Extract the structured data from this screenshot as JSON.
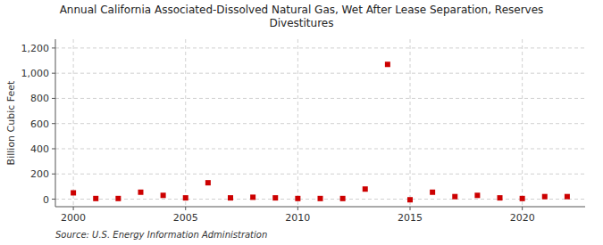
{
  "chart_data": {
    "type": "scatter",
    "title": "Annual California Associated-Dissolved Natural Gas, Wet After Lease Separation, Reserves\nDivestitures",
    "ylabel": "Billion Cubic Feet",
    "source": "Source: U.S. Energy Information Administration",
    "x": [
      2000,
      2001,
      2002,
      2003,
      2004,
      2005,
      2006,
      2007,
      2008,
      2009,
      2010,
      2011,
      2012,
      2013,
      2014,
      2015,
      2016,
      2017,
      2018,
      2019,
      2020,
      2021,
      2022
    ],
    "values": [
      50,
      5,
      5,
      55,
      30,
      10,
      130,
      10,
      15,
      10,
      5,
      5,
      5,
      80,
      1070,
      -5,
      55,
      20,
      30,
      10,
      5,
      20,
      20
    ],
    "color": "#cc0000",
    "marker": "square",
    "xlim": [
      1999.2,
      2022.8
    ],
    "ylim": [
      -60,
      1270
    ],
    "xticks": [
      2000,
      2005,
      2010,
      2015,
      2020
    ],
    "yticks": [
      0,
      200,
      400,
      600,
      800,
      {
        "value": 1000,
        "label": "1,000"
      },
      {
        "value": 1200,
        "label": "1,200"
      }
    ],
    "grid": true
  }
}
